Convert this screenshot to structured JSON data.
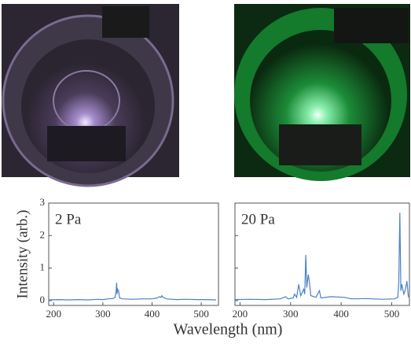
{
  "chart_data": [
    {
      "type": "line",
      "annotation": "2 Pa",
      "ylabel": "Intensity (arb.)",
      "xlabel": "Wavelength (nm)",
      "xlim": [
        190,
        535
      ],
      "ylim": [
        -0.15,
        3
      ],
      "xticks": [
        200,
        300,
        400,
        500
      ],
      "yticks": [
        0,
        1,
        2,
        3
      ],
      "color": "#4a80c8",
      "x": [
        190,
        210,
        230,
        250,
        270,
        290,
        300,
        310,
        320,
        325,
        327,
        328,
        329,
        330,
        332,
        334,
        340,
        360,
        380,
        400,
        410,
        415,
        418,
        420,
        422,
        425,
        430,
        450,
        470,
        490,
        510,
        530
      ],
      "values": [
        0.02,
        0.03,
        0.02,
        0.03,
        0.02,
        0.04,
        0.03,
        0.05,
        0.06,
        0.1,
        0.3,
        0.55,
        0.2,
        0.35,
        0.3,
        0.08,
        0.05,
        0.04,
        0.05,
        0.05,
        0.08,
        0.12,
        0.1,
        0.15,
        0.1,
        0.08,
        0.05,
        0.03,
        0.04,
        0.03,
        0.03,
        0.02
      ]
    },
    {
      "type": "line",
      "annotation": "20 Pa",
      "xlim": [
        190,
        535
      ],
      "ylim": [
        -0.15,
        3
      ],
      "xticks": [
        200,
        300,
        400,
        500
      ],
      "ytick_marks": [
        0,
        1,
        2,
        3
      ],
      "color": "#4a80c8",
      "x": [
        190,
        220,
        250,
        280,
        290,
        295,
        305,
        308,
        312,
        316,
        320,
        326,
        328,
        330,
        332,
        335,
        337,
        340,
        350,
        357,
        360,
        380,
        406,
        420,
        450,
        480,
        505,
        512,
        514,
        516,
        518,
        520,
        524,
        527,
        530,
        533
      ],
      "values": [
        0.03,
        0.04,
        0.03,
        0.05,
        0.12,
        0.05,
        0.08,
        0.2,
        0.1,
        0.5,
        0.15,
        0.35,
        0.2,
        1.4,
        0.4,
        0.8,
        0.6,
        0.15,
        0.1,
        0.3,
        0.08,
        0.12,
        0.1,
        0.05,
        0.06,
        0.04,
        0.05,
        0.1,
        0.6,
        2.7,
        0.3,
        0.5,
        0.2,
        0.35,
        0.6,
        0.1
      ]
    }
  ]
}
